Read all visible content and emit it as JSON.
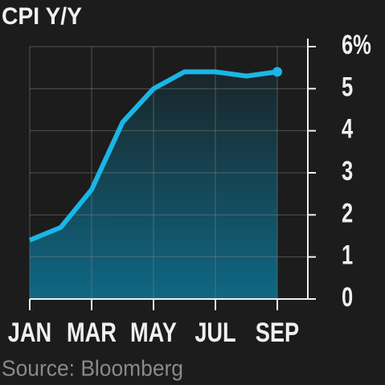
{
  "chart_data": {
    "type": "line",
    "title": "CPI Y/Y",
    "source": "Source: Bloomberg",
    "categories": [
      "JAN",
      null,
      "MAR",
      null,
      "MAY",
      null,
      "JUL",
      null,
      "SEP"
    ],
    "values": [
      1.4,
      1.7,
      2.6,
      4.2,
      5.0,
      5.4,
      5.4,
      5.3,
      5.4
    ],
    "color": "#1ab6e6",
    "area": true,
    "end_marker": true,
    "ylim": [
      0,
      6
    ],
    "yticks": [
      0,
      1,
      2,
      3,
      4,
      5,
      {
        "value": 6,
        "label": "6%"
      }
    ],
    "y_axis_side": "right",
    "grid": true
  }
}
